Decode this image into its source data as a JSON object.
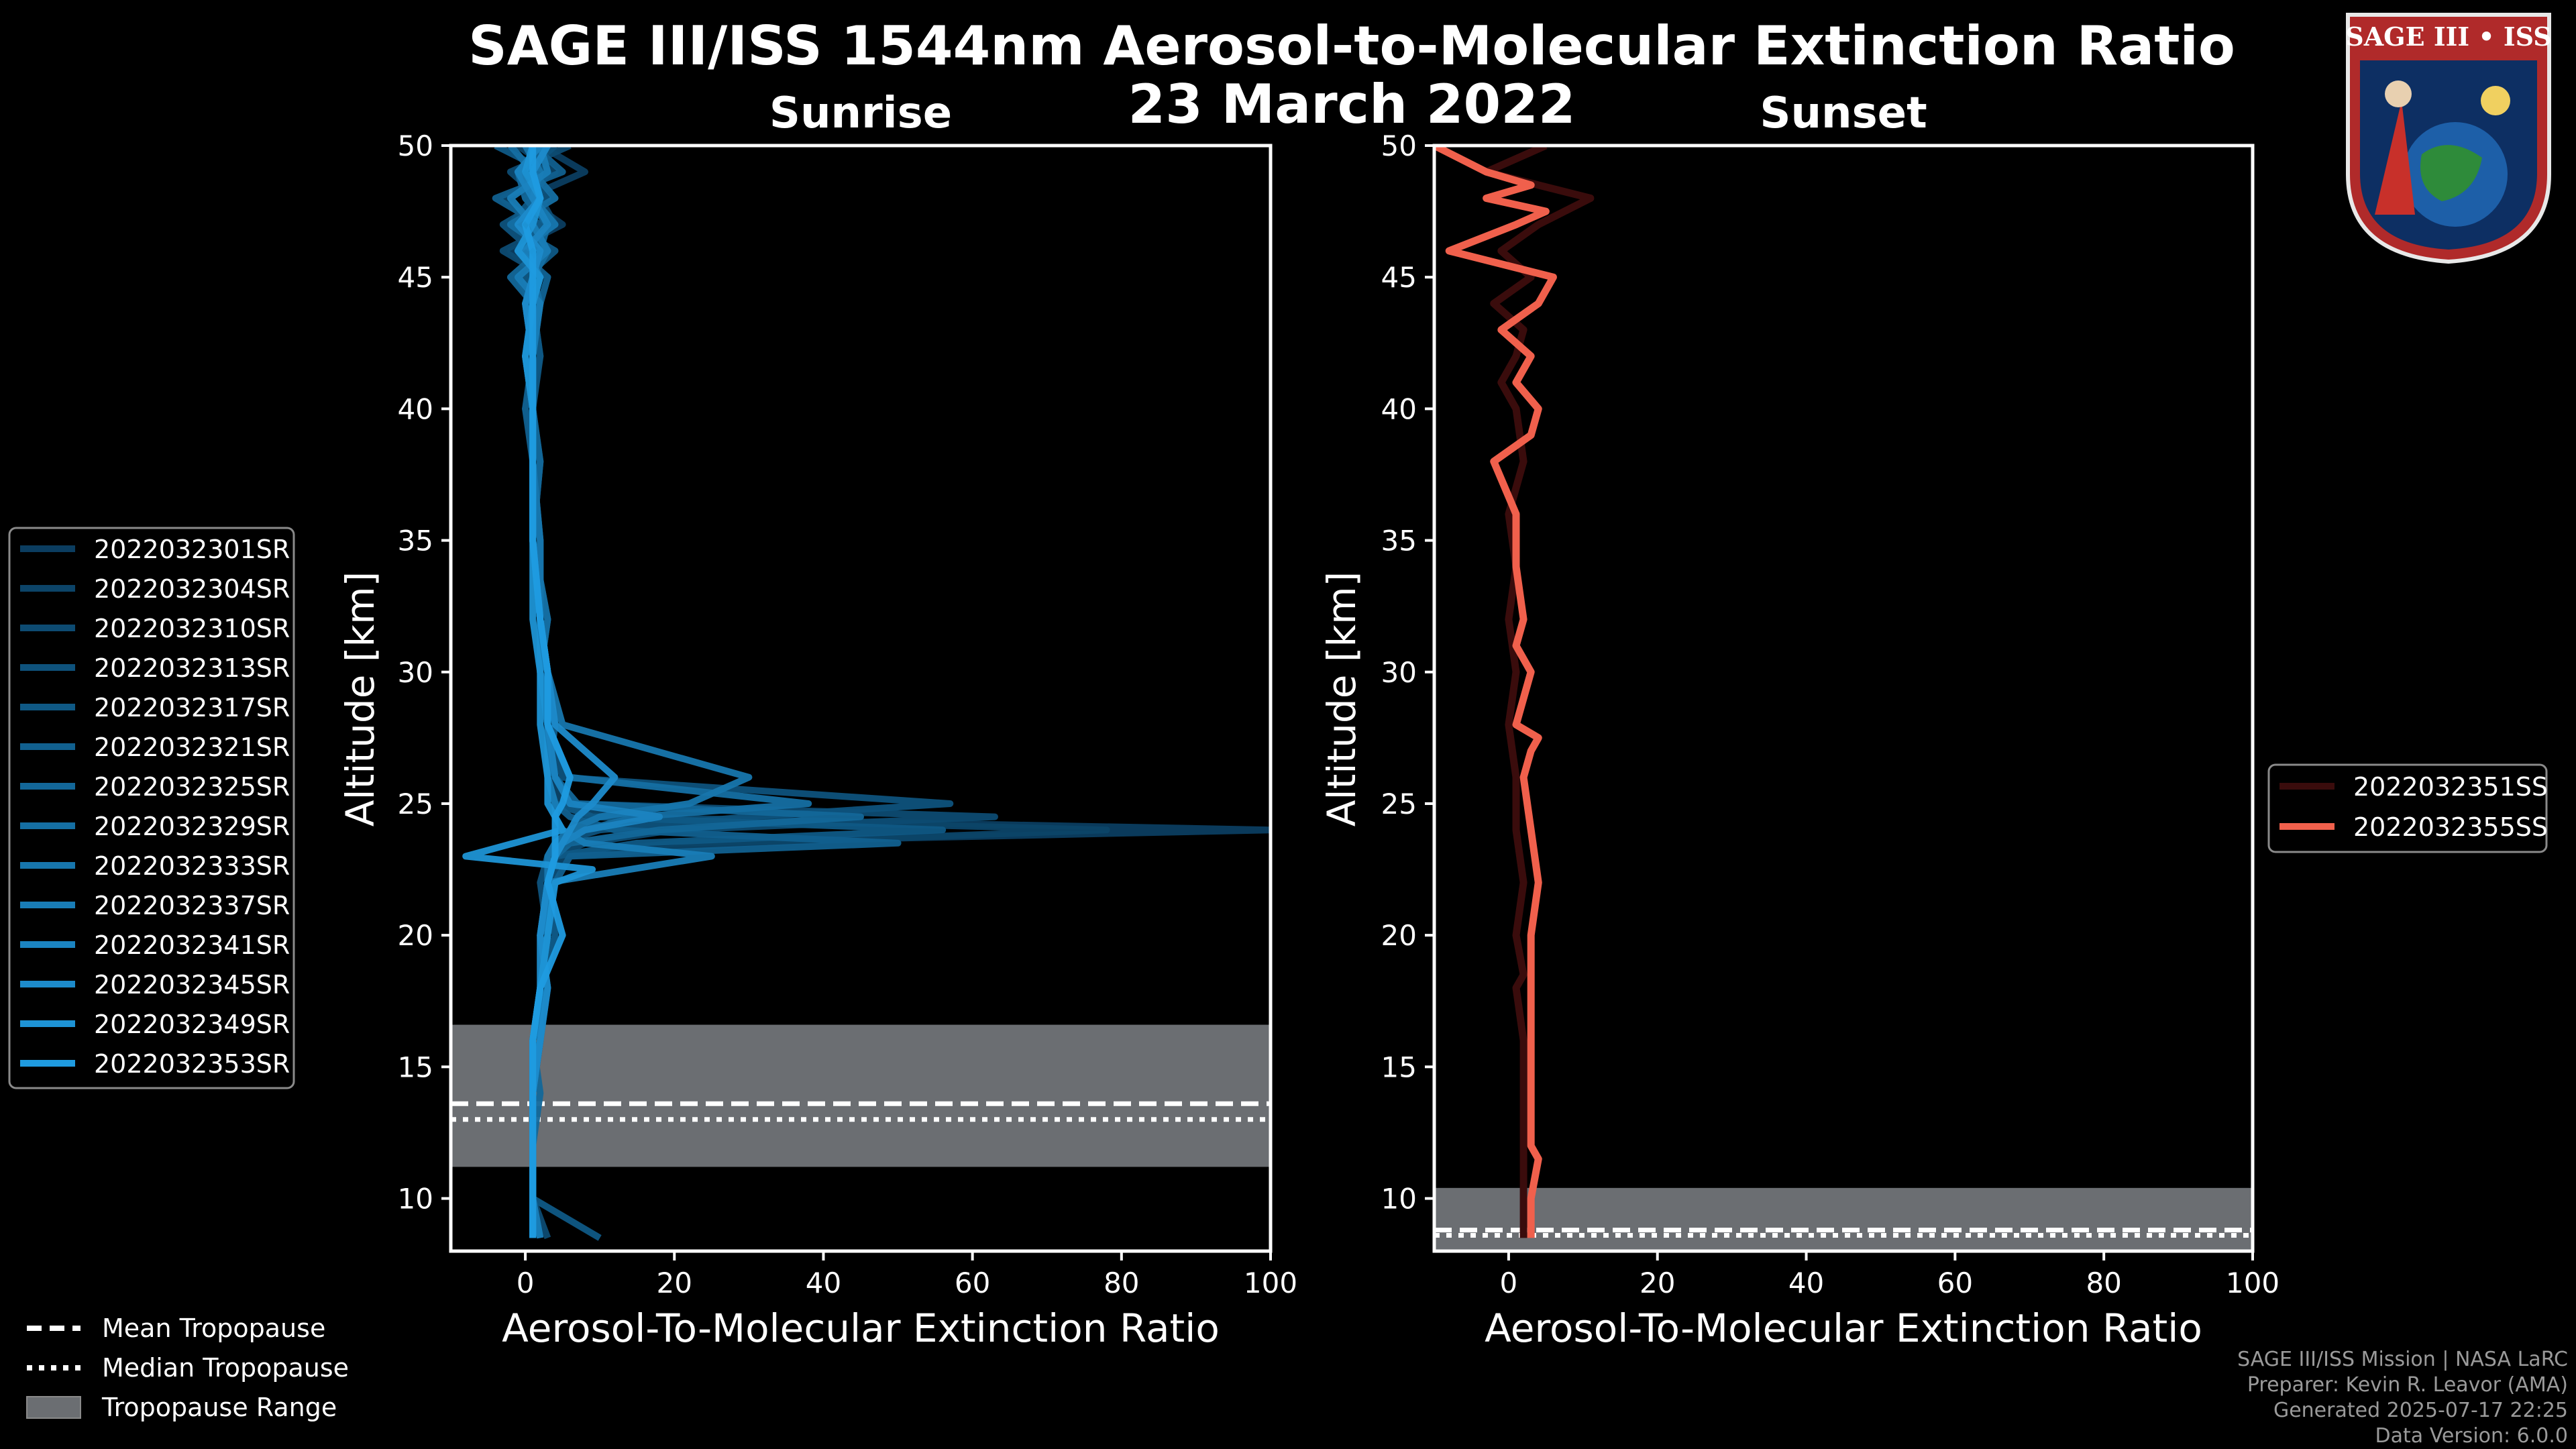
{
  "colors": {
    "background": "#000000",
    "sunrise_dark": "#0a3a5c",
    "sunrise_light": "#1f9be0",
    "sunset_dark": "#3a0a0a",
    "sunset_light": "#f0604c",
    "tropo_fill": "#6b6e72"
  },
  "header": {
    "title_line1": "SAGE III/ISS 1544nm Aerosol-to-Molecular Extinction Ratio",
    "title_line2": "23 March 2022"
  },
  "logo": {
    "text": "SAGE III • ISS",
    "icon": "mission-patch-icon"
  },
  "credits": {
    "line1": "SAGE III/ISS Mission | NASA LaRC",
    "line2": "Preparer: Kevin R. Leavor (AMA)",
    "line3": "Generated 2025-07-17 22:25",
    "line4": "Data Version: 6.0.0"
  },
  "tropo_legend": {
    "mean": "Mean Tropopause",
    "median": "Median Tropopause",
    "range": "Tropopause Range"
  },
  "chart_data": [
    {
      "type": "line",
      "title": "Sunrise",
      "xlabel": "Aerosol-To-Molecular Extinction Ratio",
      "ylabel": "Altitude [km]",
      "xlim": [
        -10,
        100
      ],
      "ylim": [
        8,
        50
      ],
      "xticks": [
        0,
        20,
        40,
        60,
        80,
        100
      ],
      "yticks": [
        10,
        15,
        20,
        25,
        30,
        35,
        40,
        45,
        50
      ],
      "legend_position": "left",
      "tropopause": {
        "mean": 13.6,
        "median": 13.0,
        "range": [
          11.2,
          16.6
        ]
      },
      "series_names": [
        "2022032301SR",
        "2022032304SR",
        "2022032310SR",
        "2022032313SR",
        "2022032317SR",
        "2022032321SR",
        "2022032325SR",
        "2022032329SR",
        "2022032333SR",
        "2022032337SR",
        "2022032341SR",
        "2022032345SR",
        "2022032349SR",
        "2022032353SR"
      ],
      "series_colors": [
        "#0b3d60",
        "#0c4468",
        "#0d4b72",
        "#0e527c",
        "#0f5985",
        "#11608f",
        "#136799",
        "#156fa3",
        "#1776ad",
        "#197db7",
        "#1b84c1",
        "#1d8bcb",
        "#1e93d5",
        "#1f9be0"
      ],
      "peaks": [
        {
          "alt": 24.0,
          "value": 100
        },
        {
          "alt": 23.8,
          "value": 78
        },
        {
          "alt": 24.6,
          "value": 63
        },
        {
          "alt": 25.0,
          "value": 57
        },
        {
          "alt": 24.2,
          "value": 56
        },
        {
          "alt": 23.6,
          "value": 50
        },
        {
          "alt": 24.4,
          "value": 45
        },
        {
          "alt": 24.8,
          "value": 38
        },
        {
          "alt": 25.2,
          "value": 30
        },
        {
          "alt": 23.4,
          "value": 25
        },
        {
          "alt": 24.5,
          "value": 18
        },
        {
          "alt": 25.5,
          "value": 12
        },
        {
          "alt": 22.5,
          "value": 9
        },
        {
          "alt": 26.0,
          "value": 6
        }
      ],
      "profiles": [
        {
          "alt": [
            8.5,
            10,
            12,
            14,
            16,
            18,
            20,
            22,
            23,
            23.5,
            24,
            24.5,
            25,
            26,
            28,
            30,
            32,
            35,
            38,
            40,
            42,
            44,
            45,
            46,
            47,
            48,
            49,
            50
          ],
          "value": [
            2,
            1,
            1,
            1,
            1,
            2,
            3,
            3,
            4,
            20,
            100,
            10,
            4,
            3,
            3,
            3,
            2,
            1,
            1,
            1,
            1,
            0,
            2,
            -2,
            5,
            0,
            8,
            2
          ]
        },
        {
          "alt": [
            8.5,
            10,
            12,
            14,
            16,
            18,
            20,
            22,
            23,
            23.5,
            24,
            24.5,
            25,
            26,
            28,
            30,
            32,
            35,
            38,
            40,
            42,
            44,
            45,
            46,
            47,
            48,
            49,
            50
          ],
          "value": [
            1,
            1,
            1,
            1,
            2,
            2,
            4,
            3,
            5,
            30,
            78,
            12,
            5,
            3,
            4,
            2,
            3,
            1,
            2,
            0,
            2,
            1,
            -1,
            3,
            1,
            -3,
            4,
            -1
          ]
        },
        {
          "alt": [
            8.5,
            10,
            12,
            14,
            16,
            18,
            20,
            22,
            23,
            23.5,
            24,
            24.5,
            25,
            26,
            28,
            30,
            32,
            35,
            38,
            40,
            42,
            44,
            45,
            46,
            47,
            48,
            49,
            50
          ],
          "value": [
            3,
            1,
            1,
            1,
            1,
            3,
            2,
            4,
            4,
            8,
            20,
            63,
            6,
            4,
            3,
            3,
            2,
            2,
            1,
            1,
            0,
            2,
            3,
            -3,
            4,
            2,
            -2,
            6
          ]
        },
        {
          "alt": [
            8.5,
            10,
            12,
            14,
            16,
            18,
            20,
            22,
            23,
            23.5,
            24,
            24.5,
            25,
            26,
            28,
            30,
            32,
            35,
            38,
            40,
            42,
            44,
            45,
            46,
            47,
            48,
            49,
            50
          ],
          "value": [
            1,
            1,
            1,
            1,
            2,
            2,
            3,
            2,
            3,
            4,
            10,
            30,
            57,
            5,
            3,
            2,
            3,
            1,
            2,
            1,
            1,
            0,
            2,
            1,
            -3,
            3,
            0,
            4
          ]
        },
        {
          "alt": [
            8.5,
            10,
            12,
            14,
            16,
            18,
            20,
            22,
            23,
            23.5,
            24,
            24.5,
            25,
            26,
            28,
            30,
            32,
            35,
            38,
            40,
            42,
            44,
            45,
            46,
            47,
            48,
            49,
            50
          ],
          "value": [
            10,
            1,
            1,
            1,
            1,
            2,
            4,
            3,
            4,
            15,
            56,
            9,
            4,
            3,
            4,
            3,
            2,
            2,
            1,
            1,
            2,
            1,
            0,
            4,
            -2,
            1,
            3,
            -4
          ]
        },
        {
          "alt": [
            8.5,
            10,
            12,
            14,
            16,
            18,
            20,
            22,
            23,
            23.5,
            24,
            24.5,
            25,
            26,
            28,
            30,
            32,
            35,
            38,
            40,
            42,
            44,
            45,
            46,
            47,
            48,
            49,
            50
          ],
          "value": [
            1,
            1,
            1,
            1,
            2,
            3,
            2,
            4,
            6,
            50,
            12,
            6,
            4,
            3,
            3,
            2,
            2,
            1,
            1,
            0,
            1,
            2,
            3,
            -1,
            2,
            -4,
            5,
            1
          ]
        },
        {
          "alt": [
            8.5,
            10,
            12,
            14,
            16,
            18,
            20,
            22,
            23,
            23.5,
            24,
            24.5,
            25,
            26,
            28,
            30,
            32,
            35,
            38,
            40,
            42,
            44,
            45,
            46,
            47,
            48,
            49,
            50
          ],
          "value": [
            2,
            1,
            1,
            2,
            1,
            2,
            3,
            3,
            4,
            6,
            18,
            45,
            7,
            4,
            3,
            3,
            2,
            1,
            2,
            1,
            1,
            1,
            -2,
            2,
            3,
            0,
            -1,
            3
          ]
        },
        {
          "alt": [
            8.5,
            10,
            12,
            14,
            16,
            18,
            20,
            22,
            23,
            23.5,
            24,
            24.5,
            25,
            26,
            28,
            30,
            32,
            35,
            38,
            40,
            42,
            44,
            45,
            46,
            47,
            48,
            49,
            50
          ],
          "value": [
            1,
            1,
            1,
            1,
            2,
            2,
            3,
            3,
            3,
            4,
            8,
            15,
            38,
            6,
            3,
            2,
            3,
            1,
            1,
            1,
            0,
            2,
            1,
            3,
            -2,
            4,
            1,
            -2
          ]
        },
        {
          "alt": [
            8.5,
            10,
            12,
            14,
            16,
            18,
            20,
            22,
            23,
            23.5,
            24,
            24.5,
            25,
            26,
            28,
            30,
            32,
            35,
            38,
            40,
            42,
            44,
            45,
            46,
            47,
            48,
            49,
            50
          ],
          "value": [
            1,
            1,
            1,
            1,
            1,
            2,
            2,
            3,
            3,
            4,
            6,
            10,
            22,
            30,
            5,
            3,
            2,
            2,
            1,
            1,
            1,
            0,
            2,
            -1,
            4,
            1,
            2,
            0
          ]
        },
        {
          "alt": [
            8.5,
            10,
            12,
            14,
            16,
            18,
            20,
            22,
            23,
            23.5,
            24,
            24.5,
            25,
            26,
            28,
            30,
            32,
            35,
            38,
            40,
            42,
            44,
            45,
            46,
            47,
            48,
            49,
            50
          ],
          "value": [
            2,
            1,
            1,
            1,
            2,
            2,
            3,
            3,
            25,
            8,
            5,
            4,
            4,
            3,
            3,
            2,
            2,
            1,
            1,
            1,
            1,
            2,
            -1,
            3,
            1,
            -2,
            3,
            2
          ]
        },
        {
          "alt": [
            8.5,
            10,
            12,
            14,
            16,
            18,
            20,
            22,
            23,
            23.5,
            24,
            24.5,
            25,
            26,
            28,
            30,
            32,
            35,
            38,
            40,
            42,
            44,
            45,
            46,
            47,
            48,
            49,
            50
          ],
          "value": [
            1,
            1,
            1,
            1,
            1,
            2,
            2,
            3,
            4,
            5,
            8,
            18,
            6,
            4,
            3,
            3,
            2,
            1,
            1,
            1,
            0,
            1,
            2,
            0,
            3,
            1,
            -1,
            2
          ]
        },
        {
          "alt": [
            8.5,
            10,
            12,
            14,
            16,
            18,
            20,
            22,
            23,
            23.5,
            24,
            24.5,
            25,
            26,
            28,
            30,
            32,
            35,
            38,
            40,
            42,
            44,
            45,
            46,
            47,
            48,
            49,
            50
          ],
          "value": [
            1,
            1,
            1,
            1,
            2,
            3,
            2,
            3,
            4,
            5,
            6,
            7,
            9,
            12,
            4,
            3,
            2,
            1,
            1,
            1,
            1,
            0,
            1,
            2,
            -1,
            2,
            1,
            3
          ]
        },
        {
          "alt": [
            8.5,
            10,
            12,
            14,
            16,
            18,
            20,
            22,
            22.5,
            23,
            24,
            24.5,
            25,
            26,
            28,
            30,
            32,
            35,
            38,
            40,
            42,
            44,
            45,
            46,
            47,
            48,
            49,
            50
          ],
          "value": [
            1,
            1,
            1,
            1,
            1,
            2,
            3,
            4,
            9,
            -8,
            5,
            4,
            3,
            3,
            2,
            2,
            1,
            1,
            1,
            1,
            0,
            1,
            2,
            -1,
            1,
            2,
            0,
            1
          ]
        },
        {
          "alt": [
            8.5,
            10,
            12,
            14,
            16,
            18,
            20,
            22,
            23,
            23.5,
            24,
            24.5,
            25,
            26,
            28,
            30,
            32,
            35,
            38,
            40,
            42,
            44,
            45,
            46,
            47,
            48,
            49,
            50
          ],
          "value": [
            1,
            1,
            1,
            1,
            1,
            2,
            5,
            3,
            4,
            4,
            4,
            4,
            5,
            6,
            3,
            3,
            2,
            1,
            1,
            1,
            1,
            1,
            1,
            1,
            0,
            2,
            1,
            1
          ]
        }
      ]
    },
    {
      "type": "line",
      "title": "Sunset",
      "xlabel": "Aerosol-To-Molecular Extinction Ratio",
      "ylabel": "Altitude [km]",
      "xlim": [
        -10,
        100
      ],
      "ylim": [
        8,
        50
      ],
      "xticks": [
        0,
        20,
        40,
        60,
        80,
        100
      ],
      "yticks": [
        10,
        15,
        20,
        25,
        30,
        35,
        40,
        45,
        50
      ],
      "legend_position": "right",
      "tropopause": {
        "mean": 8.8,
        "median": 8.6,
        "range": [
          8.0,
          10.4
        ]
      },
      "series": [
        {
          "name": "2022032351SS",
          "color": "#3a0c0c",
          "alt": [
            8.5,
            10,
            12,
            14,
            16,
            18,
            18.5,
            20,
            22,
            24,
            26,
            28,
            30,
            32,
            34,
            36,
            38,
            40,
            41,
            42,
            43,
            44,
            45,
            46,
            47,
            48,
            49,
            50
          ],
          "value": [
            2,
            2,
            2,
            2,
            2,
            1,
            2,
            1,
            2,
            1,
            1,
            0,
            1,
            0,
            1,
            0,
            2,
            1,
            -1,
            1,
            2,
            -2,
            3,
            -1,
            4,
            11,
            -3,
            5
          ]
        },
        {
          "name": "2022032355SS",
          "color": "#f0604c",
          "alt": [
            8.5,
            10,
            11.5,
            12,
            14,
            16,
            18,
            20,
            22,
            24,
            26,
            27,
            27.5,
            28,
            30,
            31,
            32,
            34,
            36,
            38,
            39,
            40,
            41,
            42,
            43,
            44,
            45,
            46,
            47,
            47.5,
            48,
            48.5,
            49,
            50
          ],
          "value": [
            3,
            3,
            4,
            3,
            3,
            3,
            3,
            3,
            4,
            3,
            2,
            3,
            4,
            1,
            3,
            1,
            2,
            1,
            1,
            -2,
            3,
            4,
            1,
            3,
            -1,
            4,
            6,
            -8,
            1,
            5,
            -3,
            3,
            -3,
            -10
          ]
        }
      ]
    }
  ]
}
